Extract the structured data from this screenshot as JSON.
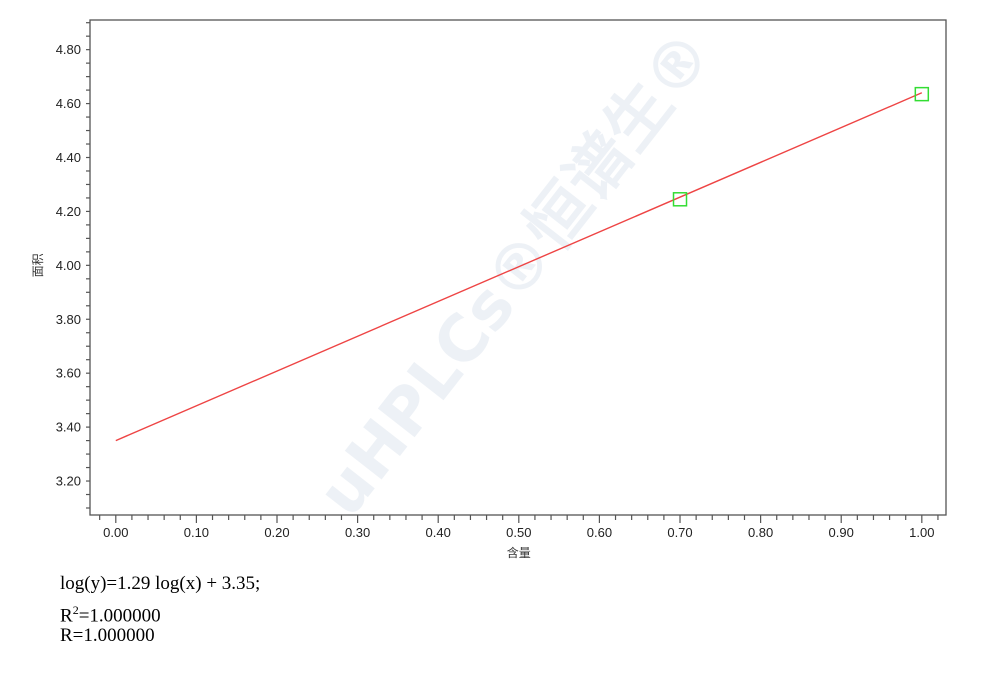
{
  "chart_data": {
    "type": "scatter",
    "title": "",
    "xlabel": "含量",
    "ylabel": "面积",
    "xlim": [
      -0.032,
      1.03
    ],
    "ylim": [
      3.074,
      4.91
    ],
    "x_ticks": [
      "0.00",
      "0.10",
      "0.20",
      "0.30",
      "0.40",
      "0.50",
      "0.60",
      "0.70",
      "0.80",
      "0.90",
      "1.00"
    ],
    "y_ticks": [
      "3.20",
      "3.40",
      "3.60",
      "3.80",
      "4.00",
      "4.20",
      "4.40",
      "4.60",
      "4.80"
    ],
    "points": [
      {
        "x": 0.7,
        "y": 4.245
      },
      {
        "x": 1.0,
        "y": 4.635
      }
    ],
    "fit_line": {
      "slope": 1.29,
      "intercept": 3.35,
      "x_range": [
        0.0,
        1.0
      ]
    },
    "grid": false,
    "colors": {
      "points": "#33dd33",
      "fit_line": "#ee4444",
      "axis": "#555555"
    }
  },
  "equation": {
    "fit": "log(y)=1.29 log(x) + 3.35;",
    "r2_prefix": "R",
    "r2_sup": "2",
    "r2_value": "=1.000000",
    "r": "R=1.000000"
  },
  "watermark": "uHPLCs®恒谱生®"
}
